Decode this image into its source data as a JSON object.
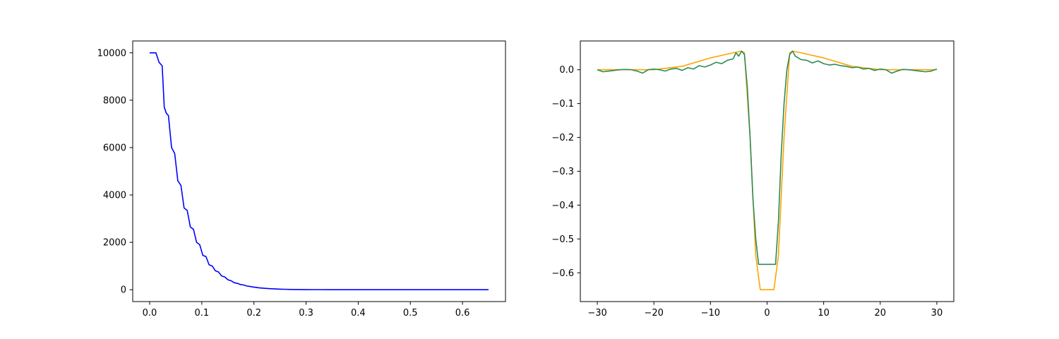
{
  "chart_data": [
    {
      "type": "line",
      "title": "",
      "xlabel": "",
      "ylabel": "",
      "xlim": [
        -0.0325,
        0.6825
      ],
      "ylim": [
        -500,
        10500
      ],
      "x_ticks": [
        0.0,
        0.1,
        0.2,
        0.3,
        0.4,
        0.5,
        0.6
      ],
      "x_tick_labels": [
        "0.0",
        "0.1",
        "0.2",
        "0.3",
        "0.4",
        "0.5",
        "0.6"
      ],
      "y_ticks": [
        0,
        2000,
        4000,
        6000,
        8000,
        10000
      ],
      "y_tick_labels": [
        "0",
        "2000",
        "4000",
        "6000",
        "8000",
        "10000"
      ],
      "grid": false,
      "series": [
        {
          "color": "#0000ff",
          "x": [
            0.0,
            0.012,
            0.018,
            0.024,
            0.028,
            0.032,
            0.036,
            0.042,
            0.048,
            0.054,
            0.06,
            0.066,
            0.072,
            0.078,
            0.084,
            0.09,
            0.096,
            0.102,
            0.108,
            0.114,
            0.12,
            0.126,
            0.132,
            0.138,
            0.144,
            0.15,
            0.156,
            0.162,
            0.168,
            0.174,
            0.18,
            0.186,
            0.192,
            0.2,
            0.21,
            0.22,
            0.23,
            0.24,
            0.25,
            0.26,
            0.27,
            0.28,
            0.3,
            0.32,
            0.35,
            0.4,
            0.5,
            0.65
          ],
          "y": [
            10000,
            10000,
            9600,
            9450,
            7700,
            7450,
            7350,
            6000,
            5750,
            4600,
            4400,
            3450,
            3350,
            2650,
            2550,
            2000,
            1900,
            1450,
            1400,
            1050,
            1000,
            800,
            750,
            580,
            540,
            420,
            380,
            300,
            270,
            220,
            200,
            160,
            140,
            110,
            80,
            60,
            45,
            35,
            25,
            18,
            12,
            8,
            5,
            3,
            2,
            1,
            0,
            0
          ]
        }
      ]
    },
    {
      "type": "line",
      "title": "",
      "xlabel": "",
      "ylabel": "",
      "xlim": [
        -33,
        33
      ],
      "ylim": [
        -0.685,
        0.085
      ],
      "x_ticks": [
        -30,
        -20,
        -10,
        0,
        10,
        20,
        30
      ],
      "x_tick_labels": [
        "−30",
        "−20",
        "−10",
        "0",
        "10",
        "20",
        "30"
      ],
      "y_ticks": [
        0.0,
        -0.1,
        -0.2,
        -0.3,
        -0.4,
        -0.5,
        -0.6
      ],
      "y_tick_labels": [
        "0.0",
        "−0.1",
        "−0.2",
        "−0.3",
        "−0.4",
        "−0.5",
        "−0.6"
      ],
      "grid": false,
      "series": [
        {
          "color": "#ffa500",
          "x": [
            -30,
            -20,
            -15,
            -10,
            -6,
            -4.5,
            -4,
            -3,
            -2,
            -1.2,
            1.2,
            2,
            3,
            4,
            4.5,
            6,
            10,
            15,
            20,
            30
          ],
          "y": [
            0.0,
            0.0,
            0.01,
            0.035,
            0.05,
            0.055,
            0.05,
            -0.2,
            -0.55,
            -0.65,
            -0.65,
            -0.55,
            -0.2,
            0.05,
            0.055,
            0.05,
            0.035,
            0.01,
            0.0,
            0.0
          ]
        },
        {
          "color": "#2e8b57",
          "x": [
            -30,
            -29,
            -28,
            -27,
            -26,
            -25,
            -24,
            -23,
            -22,
            -21,
            -20,
            -19,
            -18,
            -17,
            -16,
            -15,
            -14,
            -13,
            -12,
            -11,
            -10,
            -9,
            -8,
            -7,
            -6,
            -5.5,
            -5,
            -4.5,
            -4,
            -3.5,
            -3,
            -2.5,
            -2,
            -1.5,
            -1,
            1,
            1.5,
            2,
            2.5,
            3,
            3.5,
            4,
            4.5,
            5,
            5.5,
            6,
            7,
            8,
            9,
            10,
            11,
            12,
            13,
            14,
            15,
            16,
            17,
            18,
            19,
            20,
            21,
            22,
            23,
            24,
            25,
            26,
            27,
            28,
            29,
            30
          ],
          "y": [
            0.0,
            -0.006,
            -0.004,
            -0.002,
            0.0,
            0.001,
            0.0,
            -0.004,
            -0.01,
            0.0,
            0.002,
            0.0,
            -0.004,
            0.002,
            0.004,
            -0.002,
            0.006,
            0.002,
            0.012,
            0.008,
            0.014,
            0.022,
            0.018,
            0.028,
            0.032,
            0.05,
            0.04,
            0.055,
            0.045,
            -0.05,
            -0.2,
            -0.38,
            -0.5,
            -0.575,
            -0.575,
            -0.575,
            -0.575,
            -0.45,
            -0.25,
            -0.1,
            0.0,
            0.045,
            0.055,
            0.04,
            0.035,
            0.03,
            0.028,
            0.02,
            0.026,
            0.018,
            0.014,
            0.016,
            0.012,
            0.01,
            0.006,
            0.008,
            0.002,
            0.004,
            -0.002,
            0.002,
            0.0,
            -0.01,
            -0.004,
            0.001,
            0.0,
            -0.002,
            -0.004,
            -0.006,
            -0.004,
            0.002
          ]
        }
      ]
    }
  ]
}
